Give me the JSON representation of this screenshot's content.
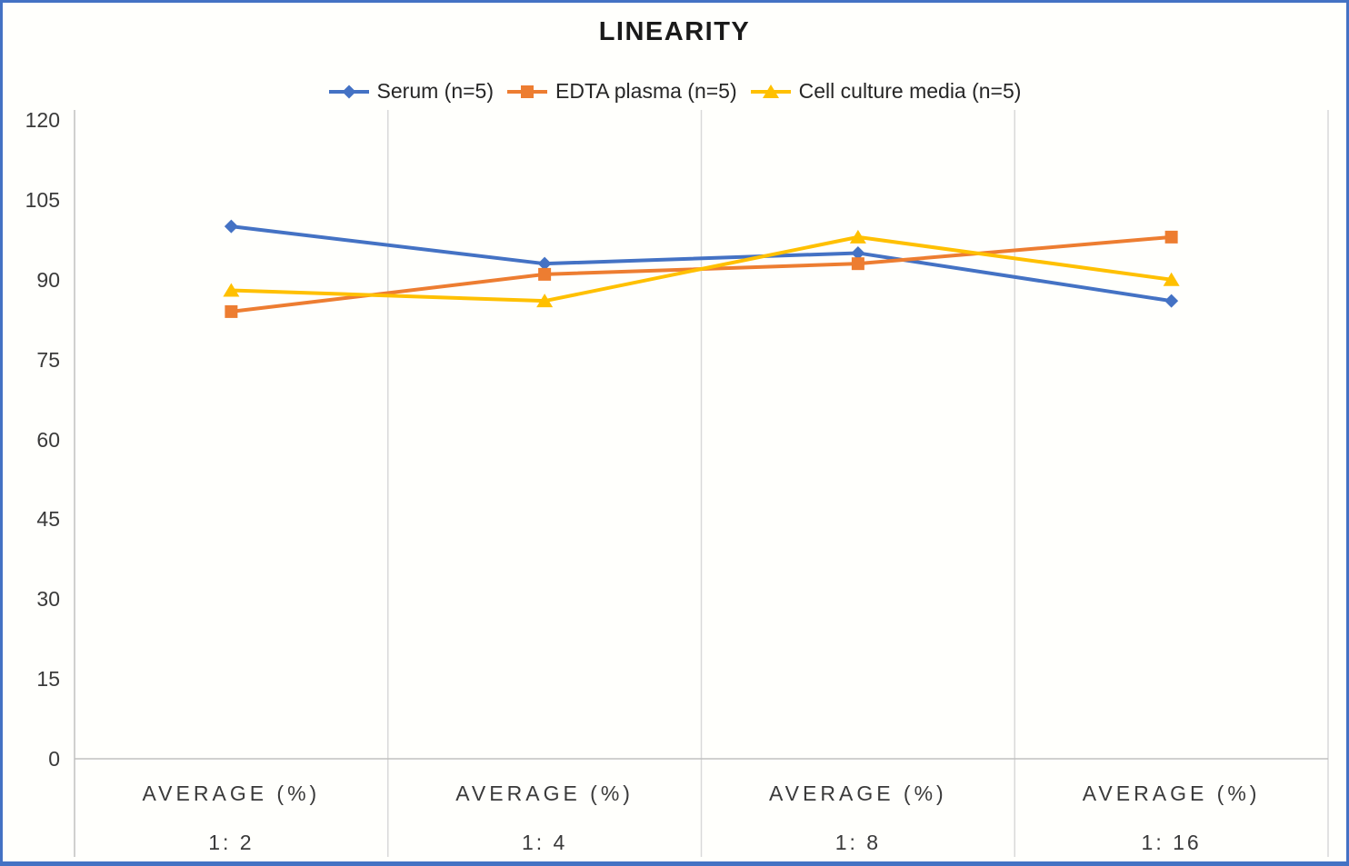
{
  "chart": {
    "title": "LINEARITY",
    "colors": {
      "frame_border": "#4472C4",
      "background": "#FFFFFC",
      "gridline": "#D9D9D9",
      "axis_line": "#C0C0C0",
      "tick_text": "#3a3a3a",
      "title_text": "#1a1a1a"
    }
  },
  "chart_data": {
    "type": "line",
    "title": "LINEARITY",
    "x_top_label": "AVERAGE (%)",
    "categories": [
      "1:  2",
      "1:  4",
      "1:  8",
      "1:  16"
    ],
    "series": [
      {
        "name": "Serum (n=5)",
        "marker": "diamond",
        "color": "#4472C4",
        "values": [
          100,
          93,
          95,
          86
        ]
      },
      {
        "name": "EDTA plasma (n=5)",
        "marker": "square",
        "color": "#ED7D31",
        "values": [
          84,
          91,
          93,
          98
        ]
      },
      {
        "name": "Cell culture media (n=5)",
        "marker": "triangle",
        "color": "#FFC000",
        "values": [
          88,
          86,
          98,
          90
        ]
      }
    ],
    "yticks": [
      0,
      15,
      30,
      45,
      60,
      75,
      90,
      105,
      120
    ],
    "ylim": [
      0,
      120
    ],
    "xlabel": "",
    "ylabel": "",
    "grid": "vertical-only",
    "legend_position": "top"
  }
}
